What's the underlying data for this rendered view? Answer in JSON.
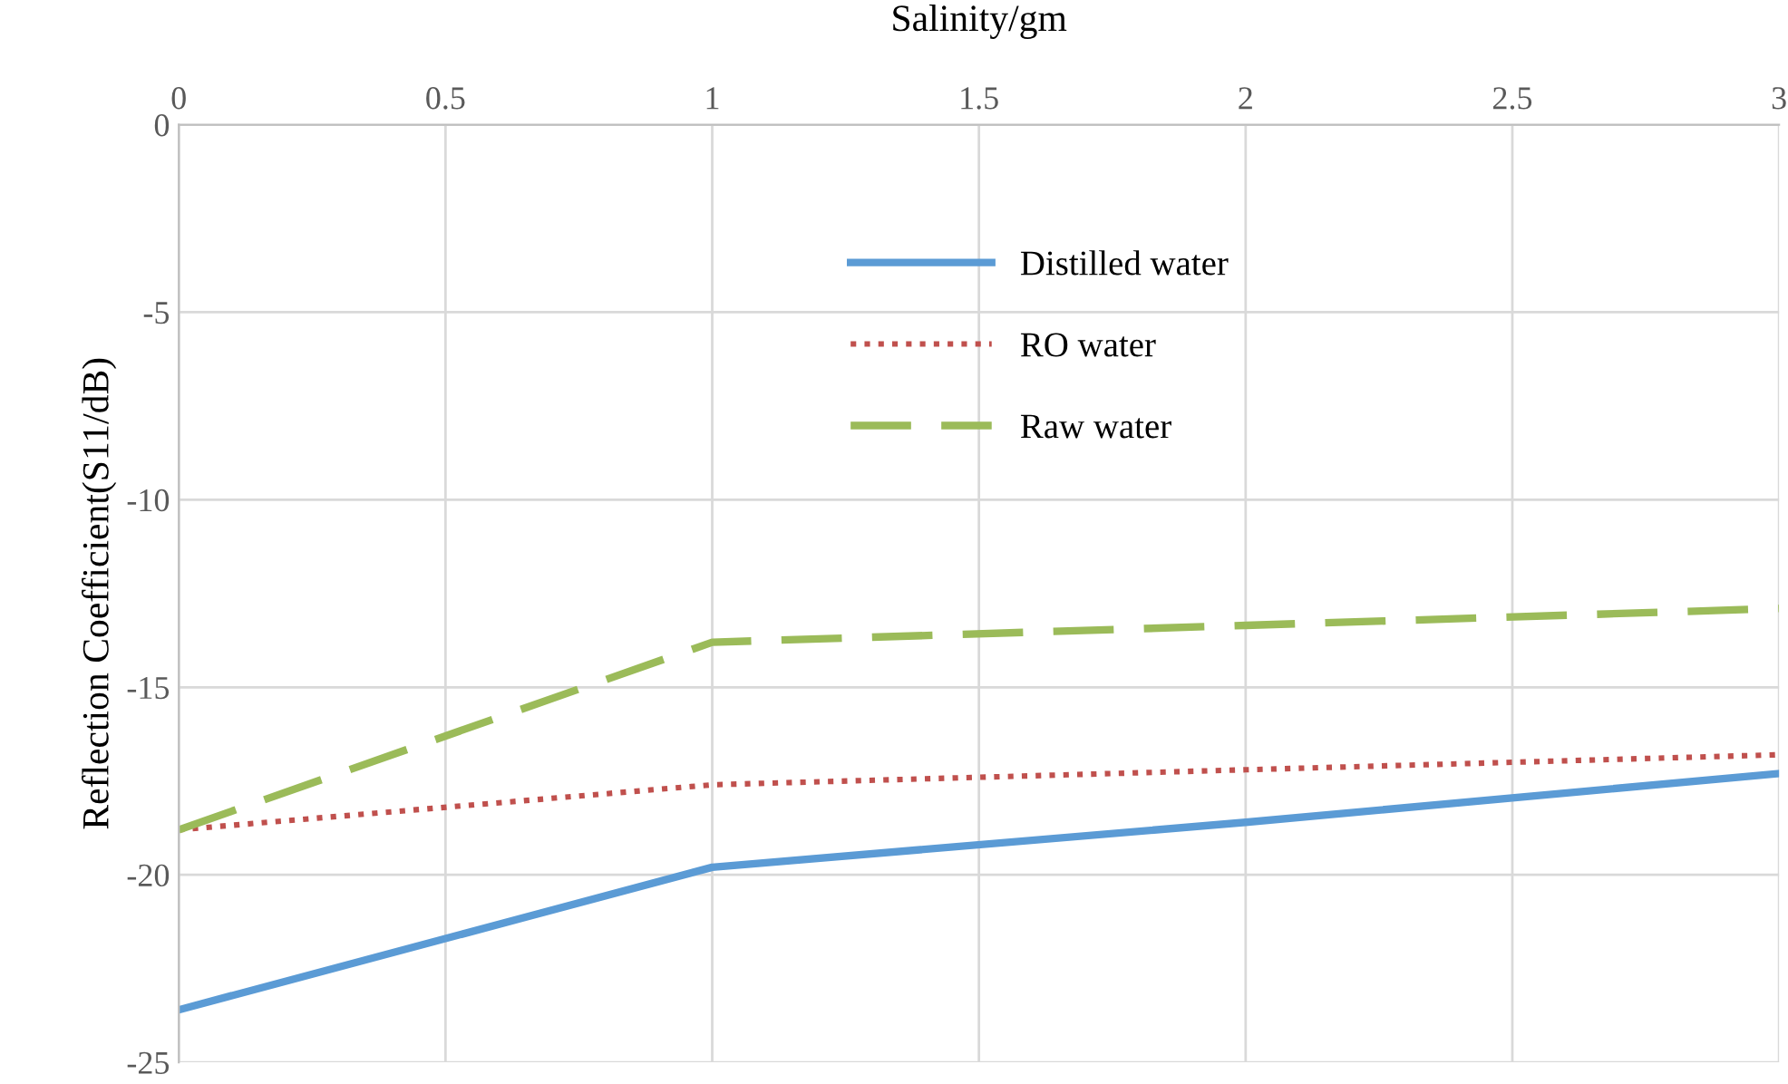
{
  "chart_data": {
    "type": "line",
    "xlabel": "Salinity/gm",
    "ylabel": "Reflection Coefficient(S11/dB)",
    "x": [
      0,
      1,
      2,
      3
    ],
    "series": [
      {
        "name": "Distilled water",
        "color": "#5b9bd5",
        "line_style": "solid",
        "values": [
          -23.6,
          -19.8,
          -18.6,
          -17.3
        ]
      },
      {
        "name": "RO water",
        "color": "#c0504d",
        "line_style": "dotted",
        "values": [
          -18.8,
          -17.6,
          -17.2,
          -16.8
        ]
      },
      {
        "name": "Raw water",
        "color": "#9bbb59",
        "line_style": "dashed",
        "values": [
          -18.8,
          -13.8,
          -13.35,
          -12.9
        ]
      }
    ],
    "xlim": [
      0,
      3
    ],
    "xticks": [
      0,
      0.5,
      1,
      1.5,
      2,
      2.5,
      3
    ],
    "ylim": [
      -25,
      0
    ],
    "yticks": [
      -25,
      -20,
      -15,
      -10,
      -5,
      0
    ],
    "grid": true,
    "legend": "top left",
    "marker": "none"
  }
}
